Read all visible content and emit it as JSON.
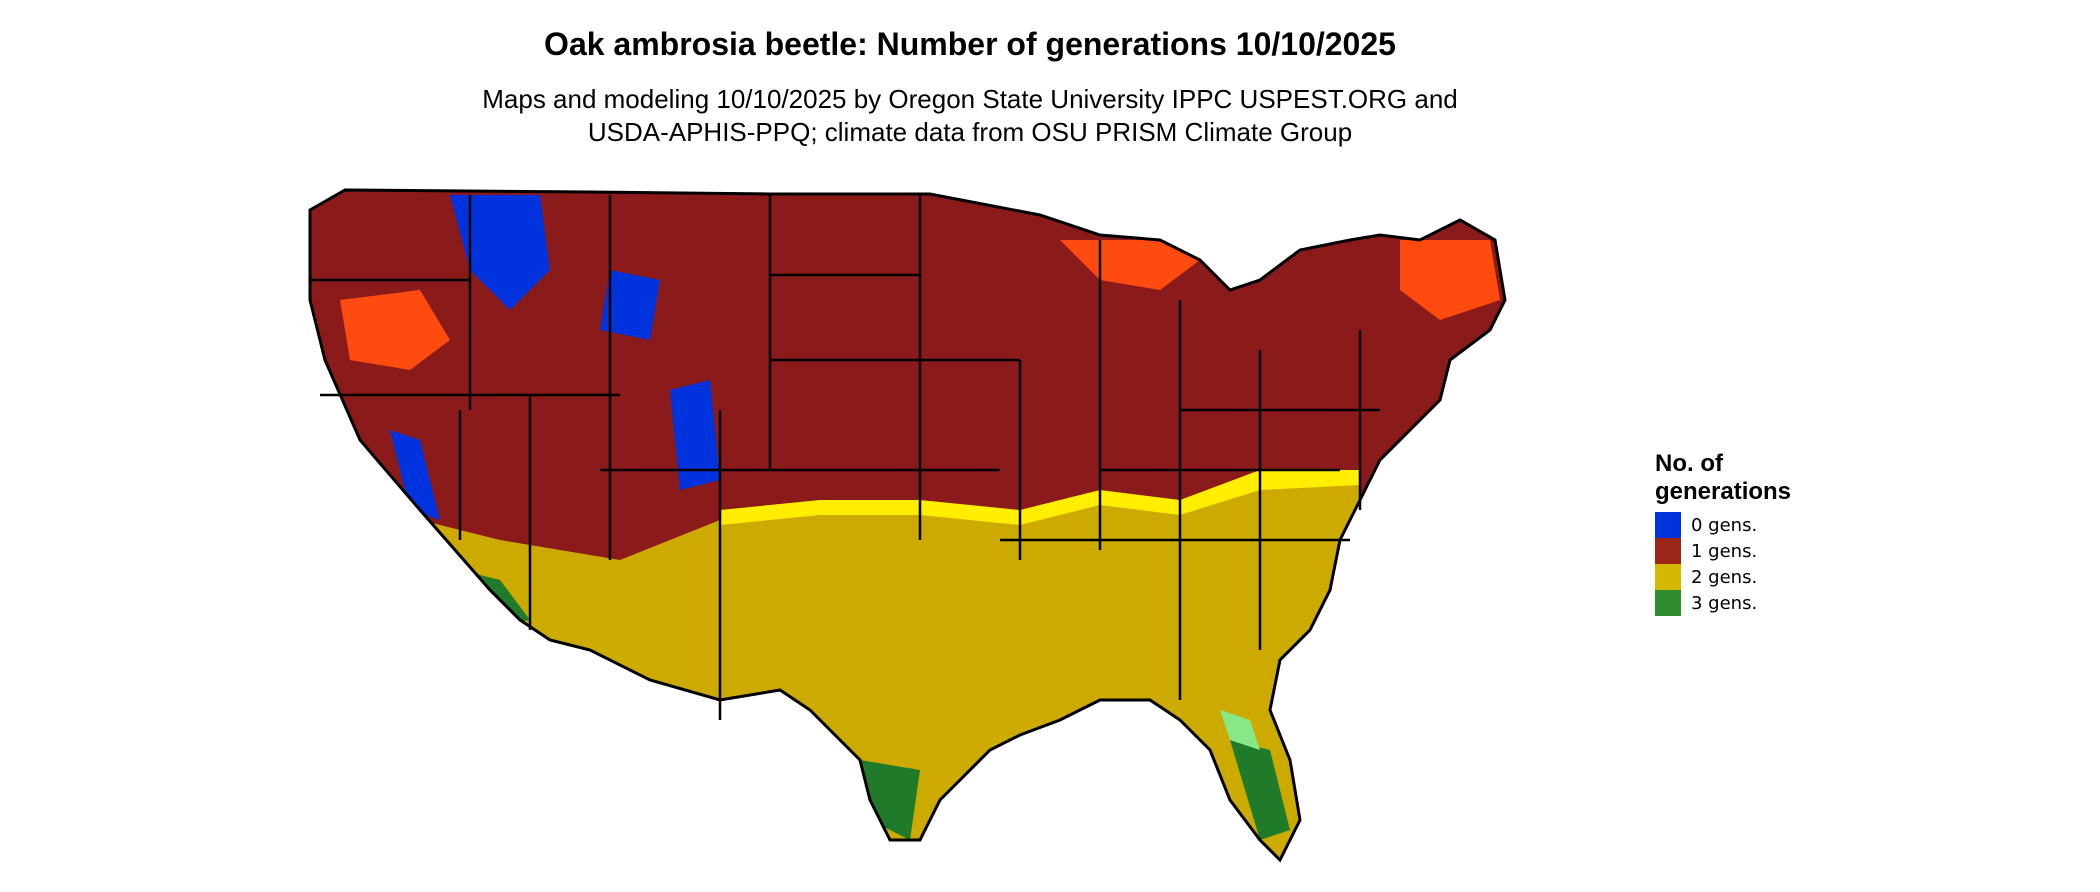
{
  "title": "Oak ambrosia beetle: Number of generations 10/10/2025",
  "subtitle": {
    "line1": "Maps and modeling 10/10/2025 by Oregon State University IPPC USPEST.ORG and",
    "line2": "USDA-APHIS-PPQ; climate data from OSU PRISM Climate Group"
  },
  "legend": {
    "title_line1": "No. of",
    "title_line2": "generations",
    "items": [
      {
        "label": "0 gens.",
        "color": "#0033dd"
      },
      {
        "label": "1 gens.",
        "color": "#9b2618"
      },
      {
        "label": "2 gens.",
        "color": "#d4b800"
      },
      {
        "label": "3 gens.",
        "color": "#2e8b2e"
      }
    ]
  },
  "colors": {
    "one_gen_dark": "#8b1a1a",
    "one_gen_light": "#ff4a10",
    "zero_gen": "#0033dd",
    "two_gen": "#ccaa00",
    "two_gen_light": "#ffee00",
    "three_gen": "#1f7a2a",
    "three_gen_light": "#88e888",
    "border": "#000000"
  }
}
